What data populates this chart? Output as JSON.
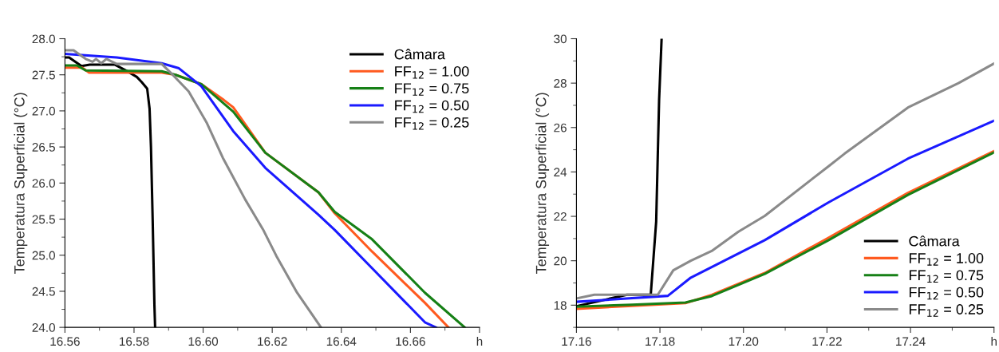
{
  "chart_data": [
    {
      "type": "line",
      "ylabel": "Temperatura Superficial (°C)",
      "xlim": [
        16.56,
        16.68
      ],
      "ylim": [
        24.0,
        28.0
      ],
      "xticks": [
        {
          "value": 16.56,
          "label": "16.56"
        },
        {
          "value": 16.58,
          "label": "16.58"
        },
        {
          "value": 16.6,
          "label": "16.60"
        },
        {
          "value": 16.62,
          "label": "16.62"
        },
        {
          "value": 16.64,
          "label": "16.64"
        },
        {
          "value": 16.66,
          "label": "16.66"
        },
        {
          "value": 16.68,
          "label": "h"
        }
      ],
      "yticks": [
        {
          "value": 24,
          "label": "24.0"
        },
        {
          "value": 24.5,
          "label": "24.5"
        },
        {
          "value": 25,
          "label": "25.0"
        },
        {
          "value": 25.5,
          "label": "25.5"
        },
        {
          "value": 26,
          "label": "26.0"
        },
        {
          "value": 26.5,
          "label": "26.5"
        },
        {
          "value": 27,
          "label": "27.0"
        },
        {
          "value": 27.5,
          "label": "27.5"
        },
        {
          "value": 28,
          "label": "28.0"
        }
      ],
      "legend": "top right",
      "grid": false,
      "marker": "none",
      "line_style": "solid",
      "series": [
        {
          "name": "Câmara",
          "color": "#000000",
          "x": [
            16.56,
            16.5612,
            16.5648,
            16.5672,
            16.5745,
            16.578,
            16.5808,
            16.5822,
            16.5838,
            16.5845,
            16.5849,
            16.5854,
            16.5859,
            16.5861
          ],
          "values": [
            27.74,
            27.74,
            27.62,
            27.64,
            27.64,
            27.55,
            27.47,
            27.4,
            27.31,
            27.03,
            26.5,
            25.48,
            24.31,
            24.0
          ]
        },
        {
          "name": "FF$_{12}$ = 1.00",
          "color": "#ff5a1f",
          "x": [
            16.56,
            16.565,
            16.567,
            16.588,
            16.592,
            16.5995,
            16.606,
            16.6087,
            16.618,
            16.6334,
            16.6381,
            16.6489,
            16.6642,
            16.671
          ],
          "values": [
            27.6,
            27.6,
            27.53,
            27.53,
            27.5,
            27.37,
            27.15,
            27.05,
            26.42,
            25.87,
            25.58,
            25.05,
            24.34,
            24.0
          ]
        },
        {
          "name": "FF$_{12}$ = 0.75",
          "color": "#168016",
          "x": [
            16.56,
            16.5635,
            16.566,
            16.588,
            16.592,
            16.5995,
            16.6087,
            16.618,
            16.6334,
            16.6381,
            16.6489,
            16.6642,
            16.6757
          ],
          "values": [
            27.63,
            27.63,
            27.56,
            27.55,
            27.5,
            27.37,
            26.99,
            26.42,
            25.87,
            25.6,
            25.22,
            24.48,
            24.0
          ]
        },
        {
          "name": "FF$_{12}$ = 0.50",
          "color": "#1a1aff",
          "x": [
            16.56,
            16.575,
            16.588,
            16.593,
            16.5995,
            16.6087,
            16.618,
            16.6334,
            16.6381,
            16.6489,
            16.6642,
            16.6674
          ],
          "values": [
            27.79,
            27.74,
            27.66,
            27.59,
            27.34,
            26.72,
            26.21,
            25.56,
            25.35,
            24.82,
            24.07,
            24.0
          ]
        },
        {
          "name": "FF$_{12}$ = 0.25",
          "color": "#8a8a8a",
          "x": [
            16.56,
            16.5625,
            16.566,
            16.568,
            16.569,
            16.5705,
            16.572,
            16.575,
            16.588,
            16.5912,
            16.5958,
            16.6011,
            16.6057,
            16.6122,
            16.6173,
            16.6212,
            16.6272,
            16.6341
          ],
          "values": [
            27.84,
            27.84,
            27.72,
            27.68,
            27.72,
            27.66,
            27.72,
            27.65,
            27.65,
            27.5,
            27.27,
            26.83,
            26.35,
            25.77,
            25.36,
            24.99,
            24.48,
            24.0
          ]
        }
      ]
    },
    {
      "type": "line",
      "ylabel": "Temperatura Superficial (°C)",
      "xlim": [
        17.16,
        17.26
      ],
      "ylim": [
        17,
        30
      ],
      "xticks": [
        {
          "value": 17.16,
          "label": "17.16"
        },
        {
          "value": 17.18,
          "label": "17.18"
        },
        {
          "value": 17.2,
          "label": "17.20"
        },
        {
          "value": 17.22,
          "label": "17.22"
        },
        {
          "value": 17.24,
          "label": "17.24"
        },
        {
          "value": 17.26,
          "label": "h"
        }
      ],
      "yticks": [
        18,
        20,
        22,
        24,
        26,
        28,
        30
      ],
      "legend": "bottom right",
      "grid": false,
      "marker": "none",
      "line_style": "solid",
      "series": [
        {
          "name": "Câmara",
          "color": "#000000",
          "x": [
            17.16,
            17.1721,
            17.1778,
            17.1791,
            17.1798,
            17.1804
          ],
          "values": [
            17.95,
            18.47,
            18.47,
            21.76,
            27.24,
            30.0
          ]
        },
        {
          "name": "FF$_{12}$ = 1.00",
          "color": "#ff5a1f",
          "x": [
            17.16,
            17.1733,
            17.1861,
            17.1924,
            17.2051,
            17.2204,
            17.2394,
            17.2599
          ],
          "values": [
            17.83,
            17.97,
            18.09,
            18.46,
            19.45,
            21.04,
            23.06,
            24.93
          ]
        },
        {
          "name": "FF$_{12}$ = 0.75",
          "color": "#168016",
          "x": [
            17.16,
            17.1733,
            17.1861,
            17.1924,
            17.2051,
            17.2204,
            17.2394,
            17.2599
          ],
          "values": [
            17.93,
            18.02,
            18.12,
            18.41,
            19.41,
            20.93,
            22.97,
            24.87
          ]
        },
        {
          "name": "FF$_{12}$ = 0.50",
          "color": "#1a1aff",
          "x": [
            17.16,
            17.1819,
            17.1874,
            17.2051,
            17.2204,
            17.2394,
            17.2599
          ],
          "values": [
            18.15,
            18.42,
            19.24,
            20.93,
            22.63,
            24.6,
            26.3
          ]
        },
        {
          "name": "FF$_{12}$ = 0.25",
          "color": "#8a8a8a",
          "x": [
            17.16,
            17.1643,
            17.1795,
            17.1832,
            17.1874,
            17.1924,
            17.1988,
            17.2051,
            17.2204,
            17.2242,
            17.2394,
            17.2515,
            17.2599
          ],
          "values": [
            18.3,
            18.47,
            18.47,
            19.57,
            20.0,
            20.44,
            21.31,
            22.02,
            24.26,
            24.82,
            26.9,
            28.0,
            28.87
          ]
        }
      ]
    }
  ]
}
